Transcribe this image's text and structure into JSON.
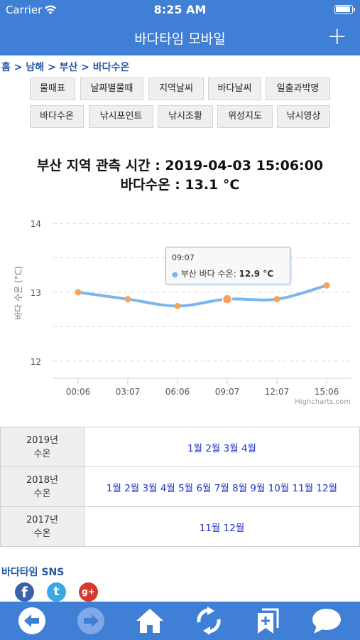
{
  "status_bar": {
    "carrier": "Carrier",
    "time": "8:25 AM"
  },
  "nav": {
    "title": "바다타임 모바일",
    "plus": "+"
  },
  "breadcrumb": {
    "items": [
      "홈",
      "남해",
      "부산",
      "바다수온"
    ],
    "separator": ">"
  },
  "menu": {
    "row1": [
      "물때표",
      "날짜별물때",
      "지역날씨",
      "바다날씨",
      "일출과박명"
    ],
    "row2": [
      "바다수온",
      "낚시포인트",
      "낚시조황",
      "위성지도",
      "낚시영상"
    ]
  },
  "heading": {
    "line1": "부산 지역 관측 시간 : 2019-04-03 15:06:00",
    "line2": "바다수온 : 13.1 °C"
  },
  "chart_data": {
    "type": "line",
    "title": "",
    "xlabel": "",
    "ylabel": "바다 수온 (°C)",
    "categories": [
      "00:06",
      "03:07",
      "06:06",
      "09:07",
      "12:07",
      "15:06"
    ],
    "series": [
      {
        "name": "부산 바다 수온",
        "values": [
          13.0,
          12.9,
          12.8,
          12.9,
          12.9,
          13.1
        ]
      }
    ],
    "ylim": [
      11.75,
      14.25
    ],
    "yticks": [
      12,
      13,
      14
    ],
    "grid": true,
    "credit": "Highcharts.com",
    "line_color": "#7cb5ec",
    "marker_color": "#f7a35c",
    "tooltip": {
      "x": "09:07",
      "series": "부산 바다 수온:",
      "value": "12.9 °C"
    }
  },
  "archive": [
    {
      "year": "2019년",
      "label": "수온",
      "months": [
        "1월",
        "2월",
        "3월",
        "4월"
      ]
    },
    {
      "year": "2018년",
      "label": "수온",
      "months": [
        "1월",
        "2월",
        "3월",
        "4월",
        "5월",
        "6월",
        "7월",
        "8월",
        "9월",
        "10월",
        "11월",
        "12월"
      ]
    },
    {
      "year": "2017년",
      "label": "수온",
      "months": [
        "11월",
        "12월"
      ]
    }
  ],
  "sns": {
    "title": "바다타임 SNS",
    "icons": [
      "facebook-icon",
      "twitter-icon",
      "google-plus-icon"
    ],
    "gplus_glyph": "g+"
  },
  "toolbar": {
    "icons": [
      "back-arrow-icon",
      "forward-arrow-icon",
      "home-icon",
      "refresh-icon",
      "bookmark-add-icon",
      "chat-bubble-icon"
    ]
  },
  "colors": {
    "brand_blue": "#3f7fd6",
    "link_blue": "#2233cc",
    "breadcrumb_blue": "#2457a6"
  }
}
